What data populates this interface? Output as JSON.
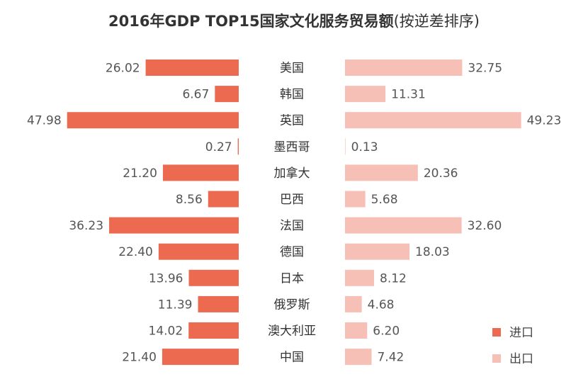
{
  "chart_data": {
    "type": "bar",
    "orientation": "horizontal-butterfly",
    "title": "2016年GDP TOP15国家文化服务贸易额",
    "subtitle": "(按逆差排序)",
    "categories": [
      "美国",
      "韩国",
      "英国",
      "墨西哥",
      "加拿大",
      "巴西",
      "法国",
      "德国",
      "日本",
      "俄罗斯",
      "澳大利亚",
      "中国"
    ],
    "series": [
      {
        "name": "进口",
        "color": "#ec6a50",
        "side": "left",
        "values": [
          26.02,
          6.67,
          47.98,
          0.27,
          21.2,
          8.56,
          36.23,
          22.4,
          13.96,
          11.39,
          14.02,
          21.4
        ],
        "labels": [
          "26.02",
          "6.67",
          "47.98",
          "0.27",
          "21.20",
          "8.56",
          "36.23",
          "22.40",
          "13.96",
          "11.39",
          "14.02",
          "21.40"
        ]
      },
      {
        "name": "出口",
        "color": "#f7c0b6",
        "side": "right",
        "values": [
          32.75,
          11.31,
          49.23,
          0.13,
          20.36,
          5.68,
          32.6,
          18.03,
          8.12,
          4.68,
          6.2,
          7.42
        ],
        "labels": [
          "32.75",
          "11.31",
          "49.23",
          "0.13",
          "20.36",
          "5.68",
          "32.60",
          "18.03",
          "8.12",
          "4.68",
          "6.20",
          "7.42"
        ]
      }
    ],
    "legend": {
      "position": "bottom-right",
      "items": [
        "进口",
        "出口"
      ]
    },
    "grid": false
  }
}
